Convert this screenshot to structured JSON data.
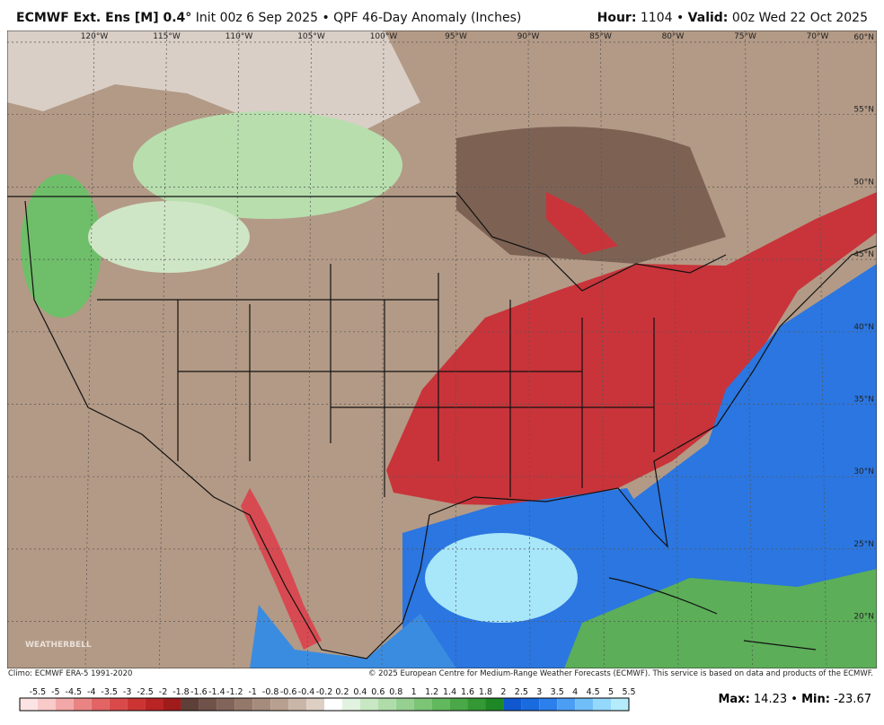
{
  "header": {
    "model": "ECMWF Ext. Ens [M] 0.4°",
    "description": "Init 00z 6 Sep 2025 • QPF 46-Day Anomaly (Inches)",
    "hour_label": "Hour:",
    "hour": "1104 •",
    "valid_label": "Valid:",
    "valid": "00z Wed 22 Oct 2025"
  },
  "map": {
    "longitudes": [
      "120°W",
      "115°W",
      "110°W",
      "105°W",
      "100°W",
      "95°W",
      "90°W",
      "85°W",
      "80°W",
      "75°W",
      "70°W"
    ],
    "latitudes": [
      "60°N",
      "55°N",
      "50°N",
      "45°N",
      "40°N",
      "35°N",
      "30°N",
      "25°N",
      "20°N"
    ],
    "watermark": "WEATHERBELL"
  },
  "footer": {
    "climo": "Climo: ECMWF ERA-5 1991-2020",
    "copyright": "© 2025 European Centre for Medium-Range Weather Forecasts (ECMWF). This service is based on data and products of the ECMWF."
  },
  "colorbar": {
    "labels": [
      -5.5,
      -5,
      -4.5,
      -4,
      -3.5,
      -3,
      -2.5,
      -2,
      -1.8,
      -1.6,
      -1.4,
      -1.2,
      -1,
      -0.8,
      -0.6,
      -0.4,
      -0.2,
      0.2,
      0.4,
      0.6,
      0.8,
      1,
      1.2,
      1.4,
      1.6,
      1.8,
      2,
      2.5,
      3,
      3.5,
      4,
      4.5,
      5,
      5.5
    ],
    "colors": [
      "#fde4e4",
      "#f8caca",
      "#f2a8a8",
      "#ea8484",
      "#e26464",
      "#da4a4a",
      "#cc3434",
      "#ba2424",
      "#a01c1c",
      "#5e4038",
      "#70524a",
      "#82645a",
      "#94786a",
      "#a68c7c",
      "#b8a090",
      "#cab6a8",
      "#ddcfc4",
      "#ffffff",
      "#e2f2e0",
      "#c8e8c4",
      "#b0dcaa",
      "#96d090",
      "#7cc476",
      "#62b85c",
      "#4aa848",
      "#349834",
      "#1e8826",
      "#1058d0",
      "#1a6ae0",
      "#2c80ec",
      "#4c9ef4",
      "#70bef8",
      "#94d8fc",
      "#b4ecfc"
    ]
  },
  "stats": {
    "max_label": "Max:",
    "max": "14.23 •",
    "min_label": "Min:",
    "min": "-23.67"
  }
}
